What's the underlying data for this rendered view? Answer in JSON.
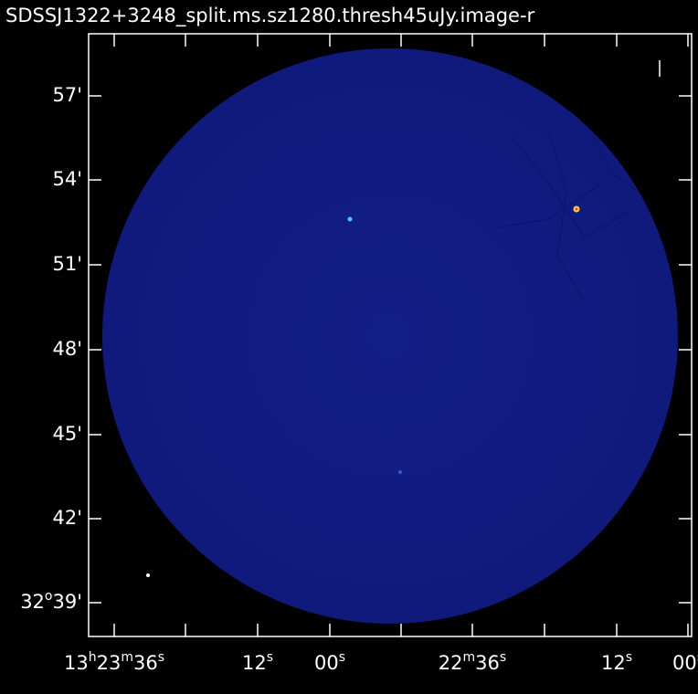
{
  "header": {
    "title": "SDSSJ1322+3248_split.ms.sz1280.thresh45uJy.image-r"
  },
  "y_axis": {
    "labels": [
      [
        "57'"
      ],
      [
        "54'"
      ],
      [
        "51'"
      ],
      [
        "48'"
      ],
      [
        "45'"
      ],
      [
        "42'"
      ],
      [
        "32",
        "o",
        "39'"
      ]
    ]
  },
  "x_axis": {
    "labels": [
      [
        "13",
        "h",
        "23",
        "m",
        "36",
        "s"
      ],
      [
        "12",
        "s"
      ],
      [
        "00",
        "s"
      ],
      [
        "22",
        "m",
        "36",
        "s"
      ],
      [
        "12",
        "s"
      ],
      [
        "00",
        "s"
      ]
    ]
  }
}
